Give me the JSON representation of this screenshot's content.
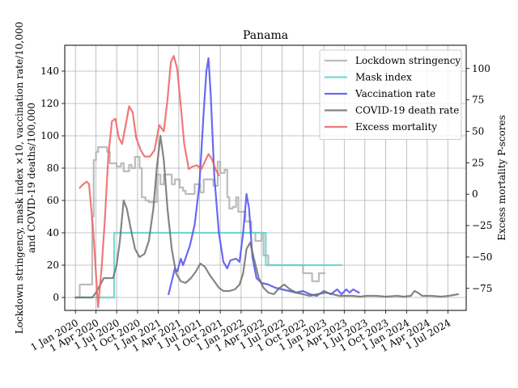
{
  "chart_data": {
    "type": "line",
    "title": "Panama",
    "ylabel_left_line1": "Lockdown stringency, mask index ×10, vaccination rate/10,000",
    "ylabel_left_line2": "and COVID-19 deaths/100,000",
    "ylabel_right": "Excess mortality P-scores",
    "ylim_left": [
      -8,
      156
    ],
    "ylim_right": [
      -92.5,
      118.5
    ],
    "xlim": [
      "2019-11-15",
      "2024-09-20"
    ],
    "left_ticks": [
      0,
      20,
      40,
      60,
      80,
      100,
      120,
      140
    ],
    "right_ticks": [
      -75,
      -50,
      -25,
      0,
      25,
      50,
      75,
      100
    ],
    "right_tick_labels": [
      "−75",
      "−50",
      "−25",
      "0",
      "25",
      "50",
      "75",
      "100"
    ],
    "x_ticks": [
      {
        "date": "2020-01-01",
        "label": "1 Jan 2020"
      },
      {
        "date": "2020-04-01",
        "label": "1 Apr 2020"
      },
      {
        "date": "2020-07-01",
        "label": "1 Jul 2020"
      },
      {
        "date": "2020-10-01",
        "label": "1 Oct 2020"
      },
      {
        "date": "2021-01-01",
        "label": "1 Jan 2021"
      },
      {
        "date": "2021-04-01",
        "label": "1 Apr 2021"
      },
      {
        "date": "2021-07-01",
        "label": "1 Jul 2021"
      },
      {
        "date": "2021-10-01",
        "label": "1 Oct 2021"
      },
      {
        "date": "2022-01-01",
        "label": "1 Jan 2022"
      },
      {
        "date": "2022-04-01",
        "label": "1 Apr 2022"
      },
      {
        "date": "2022-07-01",
        "label": "1 Jul 2022"
      },
      {
        "date": "2022-10-01",
        "label": "1 Oct 2022"
      },
      {
        "date": "2023-01-01",
        "label": "1 Jan 2023"
      },
      {
        "date": "2023-04-01",
        "label": "1 Apr 2023"
      },
      {
        "date": "2023-07-01",
        "label": "1 Jul 2023"
      },
      {
        "date": "2023-10-01",
        "label": "1 Oct 2023"
      },
      {
        "date": "2024-01-01",
        "label": "1 Jan 2024"
      },
      {
        "date": "2024-04-01",
        "label": "1 Apr 2024"
      },
      {
        "date": "2024-07-01",
        "label": "1 Jul 2024"
      }
    ],
    "grid": true,
    "legend_position": "top-right",
    "series": [
      {
        "name": "Lockdown stringency",
        "axis": "left",
        "color": "#b0b0b0",
        "step": true,
        "points": [
          [
            "2020-01-01",
            0
          ],
          [
            "2020-01-20",
            8
          ],
          [
            "2020-03-10",
            8
          ],
          [
            "2020-03-15",
            50
          ],
          [
            "2020-03-22",
            85
          ],
          [
            "2020-04-01",
            90
          ],
          [
            "2020-04-10",
            93
          ],
          [
            "2020-05-10",
            93
          ],
          [
            "2020-05-20",
            90
          ],
          [
            "2020-06-01",
            83
          ],
          [
            "2020-07-01",
            81
          ],
          [
            "2020-07-20",
            83
          ],
          [
            "2020-08-01",
            78
          ],
          [
            "2020-08-25",
            82
          ],
          [
            "2020-09-05",
            80
          ],
          [
            "2020-09-20",
            87
          ],
          [
            "2020-10-10",
            80
          ],
          [
            "2020-10-20",
            62
          ],
          [
            "2020-11-05",
            60
          ],
          [
            "2020-11-20",
            59
          ],
          [
            "2020-12-25",
            76
          ],
          [
            "2021-01-10",
            70
          ],
          [
            "2021-01-25",
            76
          ],
          [
            "2021-02-05",
            76
          ],
          [
            "2021-03-01",
            70
          ],
          [
            "2021-03-15",
            73
          ],
          [
            "2021-04-05",
            68
          ],
          [
            "2021-04-20",
            66
          ],
          [
            "2021-05-01",
            64
          ],
          [
            "2021-06-01",
            64
          ],
          [
            "2021-06-10",
            70
          ],
          [
            "2021-07-05",
            65
          ],
          [
            "2021-07-20",
            73
          ],
          [
            "2021-08-20",
            73
          ],
          [
            "2021-09-01",
            69
          ],
          [
            "2021-09-20",
            84
          ],
          [
            "2021-10-01",
            77
          ],
          [
            "2021-10-20",
            79
          ],
          [
            "2021-11-01",
            62
          ],
          [
            "2021-11-10",
            55
          ],
          [
            "2021-11-25",
            56
          ],
          [
            "2021-12-10",
            62
          ],
          [
            "2021-12-20",
            53
          ],
          [
            "2022-01-20",
            47
          ],
          [
            "2022-02-15",
            40
          ],
          [
            "2022-03-05",
            35
          ],
          [
            "2022-04-01",
            40
          ],
          [
            "2022-04-10",
            26
          ],
          [
            "2022-05-01",
            20
          ],
          [
            "2022-09-15",
            20
          ],
          [
            "2022-10-01",
            15
          ],
          [
            "2022-10-20",
            15
          ],
          [
            "2022-11-10",
            10
          ],
          [
            "2022-12-01",
            10
          ],
          [
            "2022-12-10",
            15
          ],
          [
            "2023-01-05",
            15
          ]
        ]
      },
      {
        "name": "Mask index",
        "axis": "left",
        "color": "#5fd3cf",
        "step": true,
        "points": [
          [
            "2020-01-01",
            0
          ],
          [
            "2020-06-20",
            0
          ],
          [
            "2020-06-20",
            40
          ],
          [
            "2022-04-20",
            40
          ],
          [
            "2022-04-20",
            20
          ],
          [
            "2023-03-20",
            20
          ]
        ]
      },
      {
        "name": "Vaccination rate",
        "axis": "left",
        "color": "#5050f0",
        "step": false,
        "points": [
          [
            "2021-02-15",
            2
          ],
          [
            "2021-03-01",
            10
          ],
          [
            "2021-03-15",
            18
          ],
          [
            "2021-03-25",
            16
          ],
          [
            "2021-04-10",
            24
          ],
          [
            "2021-04-20",
            20
          ],
          [
            "2021-05-05",
            26
          ],
          [
            "2021-05-20",
            32
          ],
          [
            "2021-06-10",
            45
          ],
          [
            "2021-07-01",
            70
          ],
          [
            "2021-07-20",
            115
          ],
          [
            "2021-08-01",
            140
          ],
          [
            "2021-08-10",
            148
          ],
          [
            "2021-08-20",
            125
          ],
          [
            "2021-09-05",
            75
          ],
          [
            "2021-09-25",
            40
          ],
          [
            "2021-10-15",
            22
          ],
          [
            "2021-11-01",
            18
          ],
          [
            "2021-11-15",
            23
          ],
          [
            "2021-12-10",
            24
          ],
          [
            "2021-12-25",
            22
          ],
          [
            "2022-01-10",
            40
          ],
          [
            "2022-01-25",
            64
          ],
          [
            "2022-02-05",
            55
          ],
          [
            "2022-02-20",
            25
          ],
          [
            "2022-03-10",
            12
          ],
          [
            "2022-04-01",
            9
          ],
          [
            "2022-05-01",
            8
          ],
          [
            "2022-06-01",
            6
          ],
          [
            "2022-07-01",
            5
          ],
          [
            "2022-08-01",
            4
          ],
          [
            "2022-09-01",
            3
          ],
          [
            "2022-10-01",
            4
          ],
          [
            "2022-11-01",
            2
          ],
          [
            "2022-12-01",
            1
          ],
          [
            "2023-01-01",
            4
          ],
          [
            "2023-02-01",
            2
          ],
          [
            "2023-03-01",
            5
          ],
          [
            "2023-03-20",
            2
          ],
          [
            "2023-04-10",
            5
          ],
          [
            "2023-04-25",
            3
          ],
          [
            "2023-05-10",
            5
          ],
          [
            "2023-06-05",
            3
          ]
        ]
      },
      {
        "name": "COVID-19 death rate",
        "axis": "left",
        "color": "#707070",
        "step": false,
        "points": [
          [
            "2020-01-01",
            0
          ],
          [
            "2020-03-15",
            0
          ],
          [
            "2020-04-01",
            3
          ],
          [
            "2020-04-20",
            8
          ],
          [
            "2020-05-05",
            12
          ],
          [
            "2020-05-25",
            12
          ],
          [
            "2020-06-15",
            12
          ],
          [
            "2020-07-01",
            20
          ],
          [
            "2020-07-15",
            35
          ],
          [
            "2020-08-01",
            60
          ],
          [
            "2020-08-15",
            55
          ],
          [
            "2020-09-05",
            40
          ],
          [
            "2020-09-20",
            30
          ],
          [
            "2020-10-10",
            25
          ],
          [
            "2020-11-01",
            27
          ],
          [
            "2020-11-20",
            35
          ],
          [
            "2020-12-10",
            55
          ],
          [
            "2020-12-25",
            80
          ],
          [
            "2021-01-10",
            100
          ],
          [
            "2021-01-25",
            85
          ],
          [
            "2021-02-10",
            55
          ],
          [
            "2021-03-01",
            30
          ],
          [
            "2021-03-20",
            15
          ],
          [
            "2021-04-10",
            10
          ],
          [
            "2021-05-01",
            9
          ],
          [
            "2021-05-25",
            12
          ],
          [
            "2021-06-15",
            16
          ],
          [
            "2021-07-05",
            21
          ],
          [
            "2021-07-25",
            19
          ],
          [
            "2021-08-15",
            14
          ],
          [
            "2021-09-05",
            10
          ],
          [
            "2021-09-25",
            6
          ],
          [
            "2021-10-15",
            4
          ],
          [
            "2021-11-10",
            4
          ],
          [
            "2021-12-05",
            5
          ],
          [
            "2021-12-25",
            8
          ],
          [
            "2022-01-10",
            15
          ],
          [
            "2022-01-25",
            30
          ],
          [
            "2022-02-10",
            34
          ],
          [
            "2022-02-25",
            25
          ],
          [
            "2022-03-20",
            12
          ],
          [
            "2022-04-10",
            6
          ],
          [
            "2022-05-01",
            3
          ],
          [
            "2022-05-25",
            2
          ],
          [
            "2022-06-20",
            6
          ],
          [
            "2022-07-10",
            8
          ],
          [
            "2022-08-05",
            5
          ],
          [
            "2022-09-01",
            3
          ],
          [
            "2022-10-01",
            2
          ],
          [
            "2022-11-01",
            1
          ],
          [
            "2022-12-01",
            2
          ],
          [
            "2023-01-10",
            3
          ],
          [
            "2023-02-10",
            2
          ],
          [
            "2023-03-10",
            1
          ],
          [
            "2023-04-10",
            1
          ],
          [
            "2023-05-10",
            1
          ],
          [
            "2023-06-10",
            0.5
          ],
          [
            "2023-07-10",
            1
          ],
          [
            "2023-08-20",
            1
          ],
          [
            "2023-10-01",
            0.5
          ],
          [
            "2023-11-20",
            1
          ],
          [
            "2023-12-20",
            0.5
          ],
          [
            "2024-01-20",
            1
          ],
          [
            "2024-02-05",
            4
          ],
          [
            "2024-02-20",
            3
          ],
          [
            "2024-03-10",
            1
          ],
          [
            "2024-04-20",
            1
          ],
          [
            "2024-06-01",
            0.5
          ],
          [
            "2024-07-05",
            1
          ],
          [
            "2024-08-15",
            2
          ]
        ]
      },
      {
        "name": "Excess mortality",
        "axis": "right",
        "color": "#f06060",
        "step": false,
        "points": [
          [
            "2020-01-20",
            5
          ],
          [
            "2020-02-05",
            8
          ],
          [
            "2020-02-20",
            10
          ],
          [
            "2020-03-01",
            8
          ],
          [
            "2020-03-20",
            -30
          ],
          [
            "2020-04-10",
            -90
          ],
          [
            "2020-04-25",
            -60
          ],
          [
            "2020-05-10",
            -20
          ],
          [
            "2020-05-25",
            30
          ],
          [
            "2020-06-10",
            58
          ],
          [
            "2020-06-25",
            60
          ],
          [
            "2020-07-10",
            45
          ],
          [
            "2020-07-25",
            40
          ],
          [
            "2020-08-10",
            55
          ],
          [
            "2020-08-25",
            70
          ],
          [
            "2020-09-10",
            65
          ],
          [
            "2020-09-25",
            45
          ],
          [
            "2020-10-15",
            35
          ],
          [
            "2020-11-01",
            30
          ],
          [
            "2020-11-25",
            30
          ],
          [
            "2020-12-15",
            35
          ],
          [
            "2021-01-05",
            55
          ],
          [
            "2021-01-25",
            50
          ],
          [
            "2021-02-10",
            75
          ],
          [
            "2021-02-25",
            105
          ],
          [
            "2021-03-10",
            110
          ],
          [
            "2021-03-25",
            100
          ],
          [
            "2021-04-10",
            70
          ],
          [
            "2021-04-25",
            40
          ],
          [
            "2021-05-15",
            20
          ],
          [
            "2021-06-01",
            22
          ],
          [
            "2021-06-20",
            23
          ],
          [
            "2021-07-10",
            20
          ],
          [
            "2021-07-25",
            26
          ],
          [
            "2021-08-10",
            32
          ],
          [
            "2021-08-25",
            28
          ],
          [
            "2021-09-10",
            20
          ],
          [
            "2021-09-25",
            15
          ]
        ]
      }
    ]
  }
}
